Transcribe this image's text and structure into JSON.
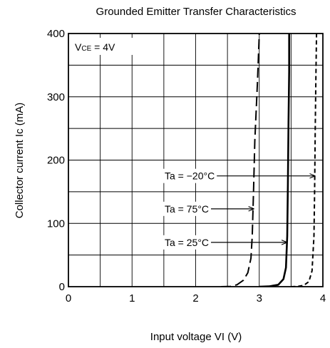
{
  "chart_data": {
    "type": "line",
    "title": "Grounded Emitter Transfer Characteristics",
    "xlabel": "Input voltage  VI (V)",
    "ylabel": "Collector current  Ic (mA)",
    "xlim": [
      0,
      4
    ],
    "ylim": [
      0,
      400
    ],
    "xticks": [
      "0",
      "1",
      "2",
      "3",
      "4"
    ],
    "yticks": [
      "0",
      "100",
      "200",
      "300",
      "400"
    ],
    "grid": true,
    "condition": "VCE = 4V",
    "series": [
      {
        "name": "Ta = −20°C",
        "style": "short-dash",
        "points": [
          [
            3.5,
            0
          ],
          [
            3.6,
            0.5
          ],
          [
            3.7,
            2
          ],
          [
            3.78,
            8
          ],
          [
            3.83,
            25
          ],
          [
            3.86,
            80
          ],
          [
            3.87,
            150
          ],
          [
            3.88,
            250
          ],
          [
            3.89,
            330
          ],
          [
            3.9,
            400
          ]
        ]
      },
      {
        "name": "Ta = 75°C",
        "style": "long-dash",
        "points": [
          [
            2.4,
            0
          ],
          [
            2.55,
            0.5
          ],
          [
            2.65,
            3
          ],
          [
            2.75,
            10
          ],
          [
            2.82,
            22
          ],
          [
            2.87,
            45
          ],
          [
            2.89,
            80
          ],
          [
            2.91,
            150
          ],
          [
            2.93,
            230
          ],
          [
            2.97,
            320
          ],
          [
            3.0,
            400
          ]
        ]
      },
      {
        "name": "Ta = 25°C",
        "style": "solid",
        "points": [
          [
            3.0,
            0
          ],
          [
            3.15,
            0.5
          ],
          [
            3.3,
            3
          ],
          [
            3.38,
            12
          ],
          [
            3.42,
            30
          ],
          [
            3.44,
            80
          ],
          [
            3.45,
            160
          ],
          [
            3.46,
            260
          ],
          [
            3.47,
            340
          ],
          [
            3.47,
            400
          ]
        ]
      }
    ],
    "annotations": [
      {
        "text": "Ta = −20°C",
        "target_series": 0,
        "at_y": 175,
        "arrow_to_x": 3.88
      },
      {
        "text": "Ta = 75°C",
        "target_series": 1,
        "at_y": 123,
        "arrow_to_x": 2.92
      },
      {
        "text": "Ta = 25°C",
        "target_series": 2,
        "at_y": 70,
        "arrow_to_x": 3.44
      }
    ]
  }
}
